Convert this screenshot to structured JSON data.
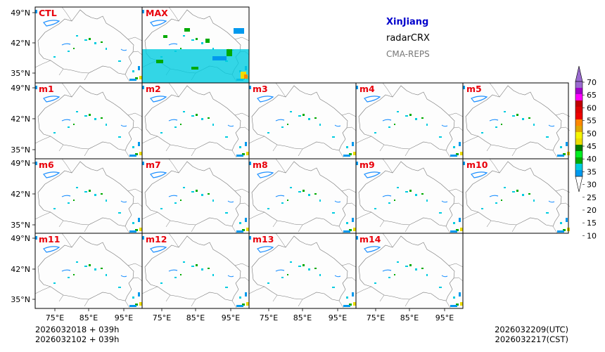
{
  "header": {
    "region": "XinJiang",
    "product": "radarCRX",
    "model": "CMA-REPS"
  },
  "panels": [
    {
      "label": "CTL"
    },
    {
      "label": "MAX"
    },
    {
      "label": "m1"
    },
    {
      "label": "m2"
    },
    {
      "label": "m3"
    },
    {
      "label": "m4"
    },
    {
      "label": "m5"
    },
    {
      "label": "m6"
    },
    {
      "label": "m7"
    },
    {
      "label": "m8"
    },
    {
      "label": "m9"
    },
    {
      "label": "m10"
    },
    {
      "label": "m11"
    },
    {
      "label": "m12"
    },
    {
      "label": "m13"
    },
    {
      "label": "m14"
    }
  ],
  "axes": {
    "lat_labels": [
      "49°N",
      "42°N",
      "35°N"
    ],
    "lon_labels": [
      "75°E",
      "85°E",
      "95°E"
    ]
  },
  "time": {
    "init_utc": "2026032018  +  039h",
    "init_cst": "2026032102  +  039h",
    "valid_utc": "2026032209(UTC)",
    "valid_cst": "2026032217(CST)"
  },
  "colorbar": {
    "levels": [
      "70",
      "65",
      "60",
      "55",
      "50",
      "45",
      "40",
      "35",
      "30",
      "25",
      "20",
      "15",
      "10"
    ],
    "colors": [
      "#0099ee",
      "#00cce0",
      "#00aa00",
      "#00ee22",
      "#007a00",
      "#eedd00",
      "#f5f500",
      "#e0a800",
      "#ff8800",
      "#ee0000",
      "#dd0000",
      "#c00000",
      "#ff00ff",
      "#a100c8",
      "#9a6acf"
    ],
    "over_color": "#9a6acf",
    "under_color": "#ffffff"
  }
}
